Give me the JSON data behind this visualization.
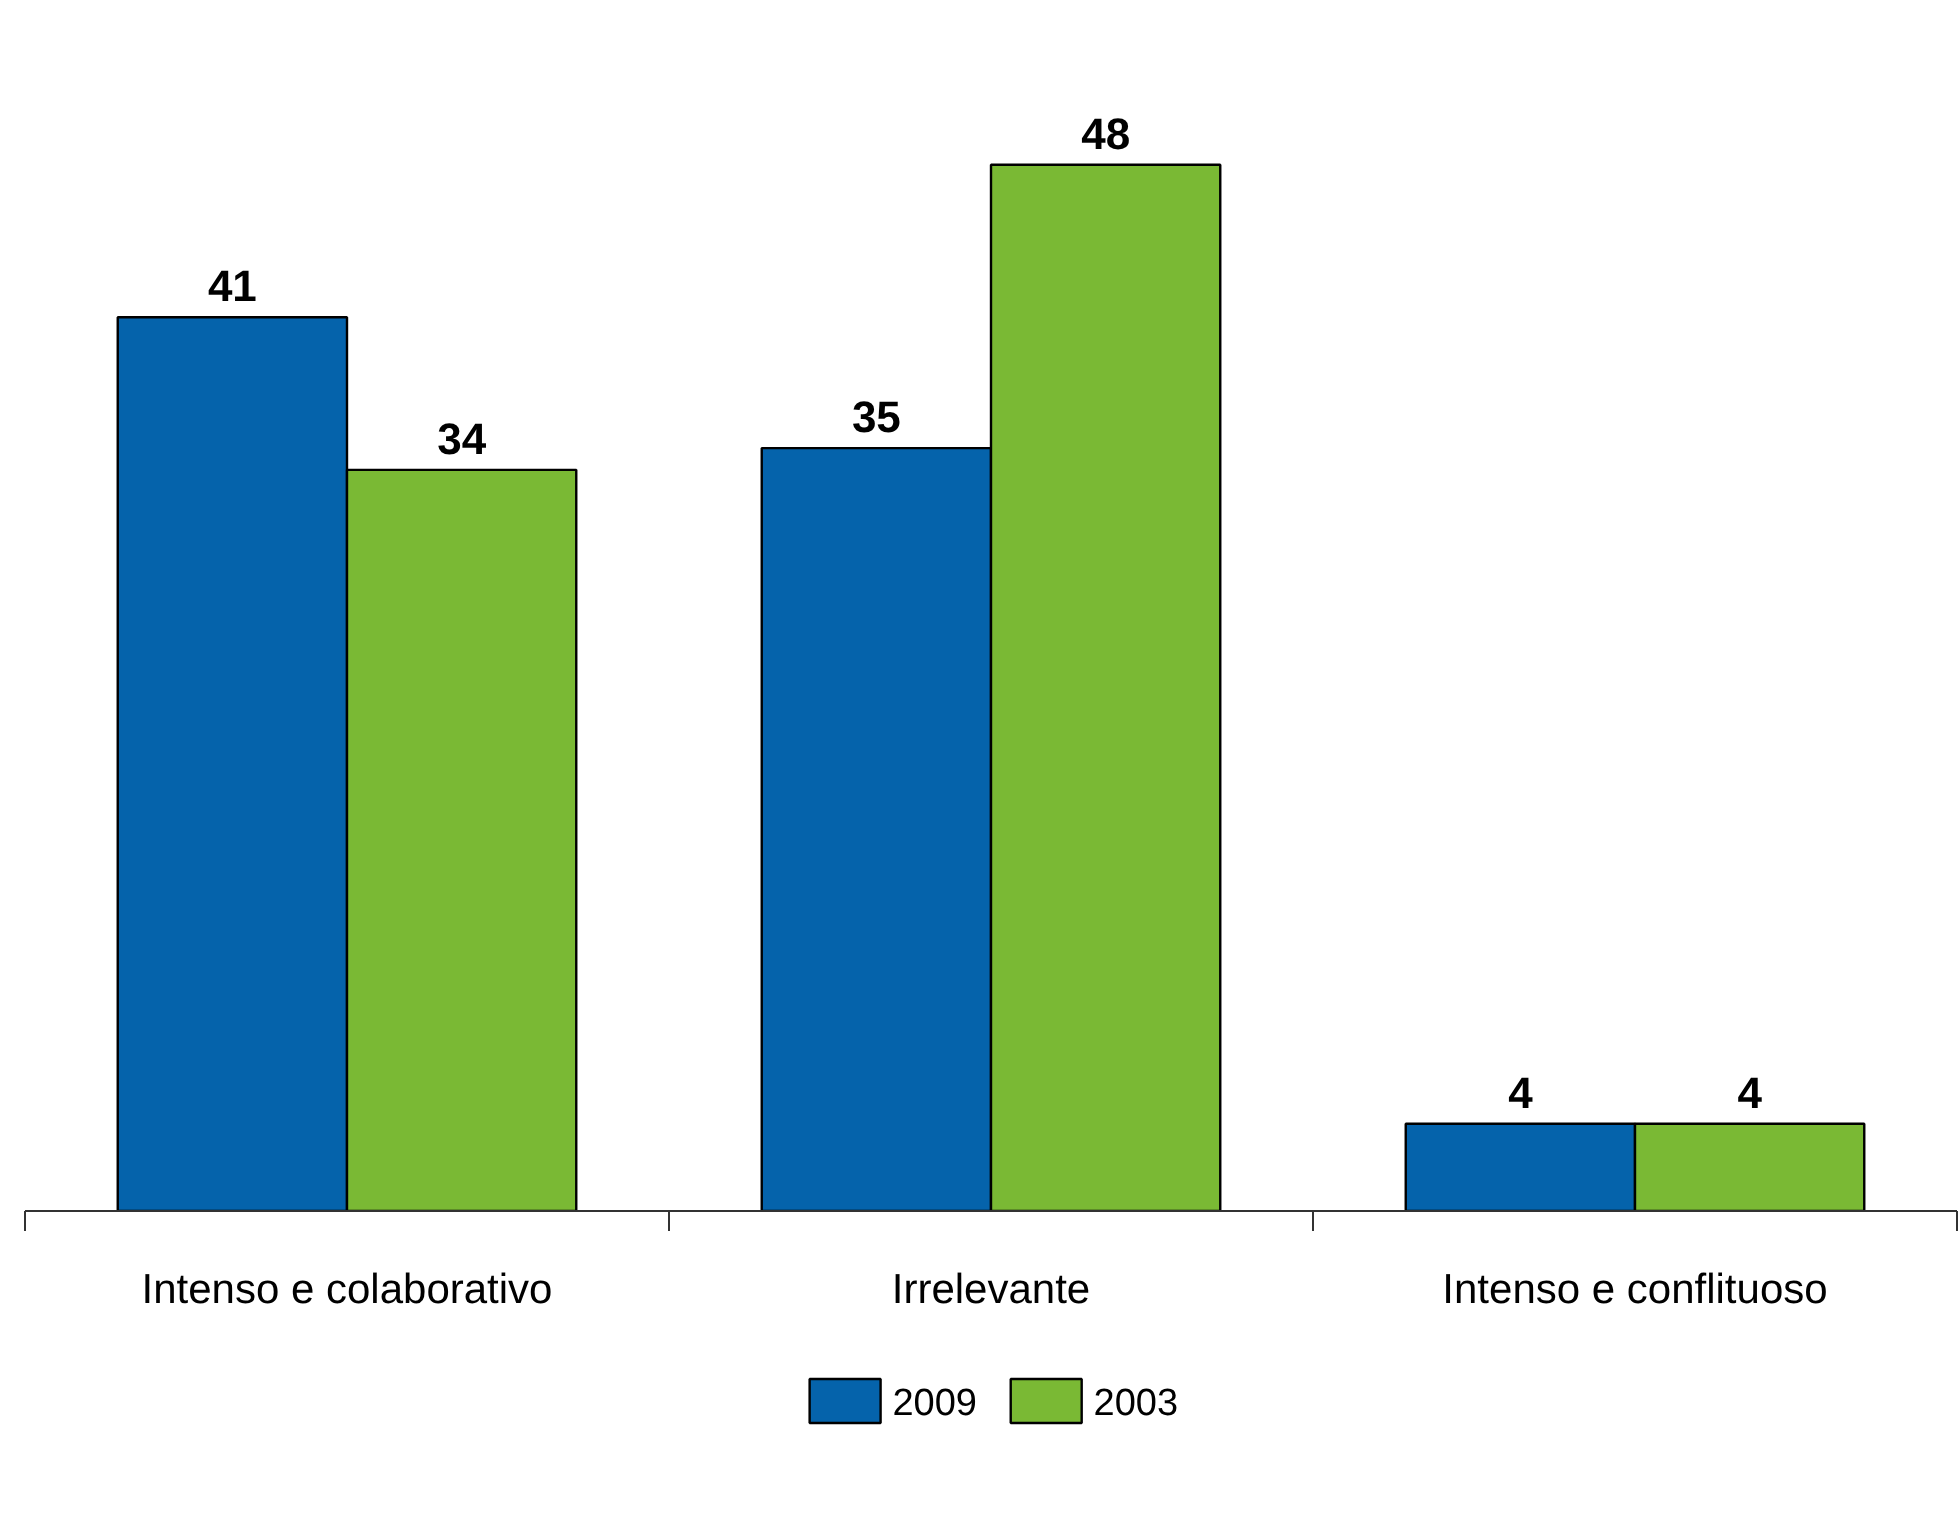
{
  "chart_data": {
    "type": "bar",
    "categories": [
      "Intenso e colaborativo",
      "Irrelevante",
      "Intenso e conflituoso"
    ],
    "series": [
      {
        "name": "2009",
        "color": "#0563ab",
        "values": [
          41,
          35,
          4
        ]
      },
      {
        "name": "2003",
        "color": "#7ab934",
        "values": [
          34,
          48,
          4
        ]
      }
    ],
    "data_labels": true,
    "legend": "bottom",
    "grid": false
  }
}
